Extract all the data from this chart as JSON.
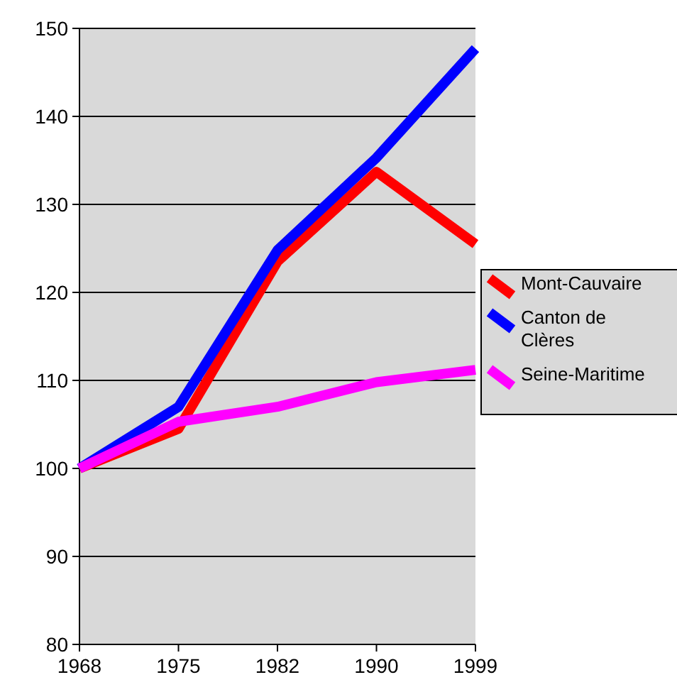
{
  "chart_data": {
    "type": "line",
    "categories": [
      "1968",
      "1975",
      "1982",
      "1990",
      "1999"
    ],
    "series": [
      {
        "name": "Mont-Cauvaire",
        "color": "#ff0000",
        "values": [
          100,
          104.5,
          123.5,
          133.7,
          125.5
        ]
      },
      {
        "name": "Canton de Clères",
        "color": "#0000ff",
        "values": [
          100,
          107,
          124.8,
          135.3,
          147.7
        ]
      },
      {
        "name": "Seine-Maritime",
        "color": "#ff00ff",
        "values": [
          100,
          105.3,
          107,
          109.8,
          111.2
        ]
      }
    ],
    "ylim": [
      80,
      150
    ],
    "yticks": [
      80,
      90,
      100,
      110,
      120,
      130,
      140,
      150
    ],
    "grid": "y",
    "legend": "right",
    "marker": "none",
    "line_style": "solid"
  }
}
